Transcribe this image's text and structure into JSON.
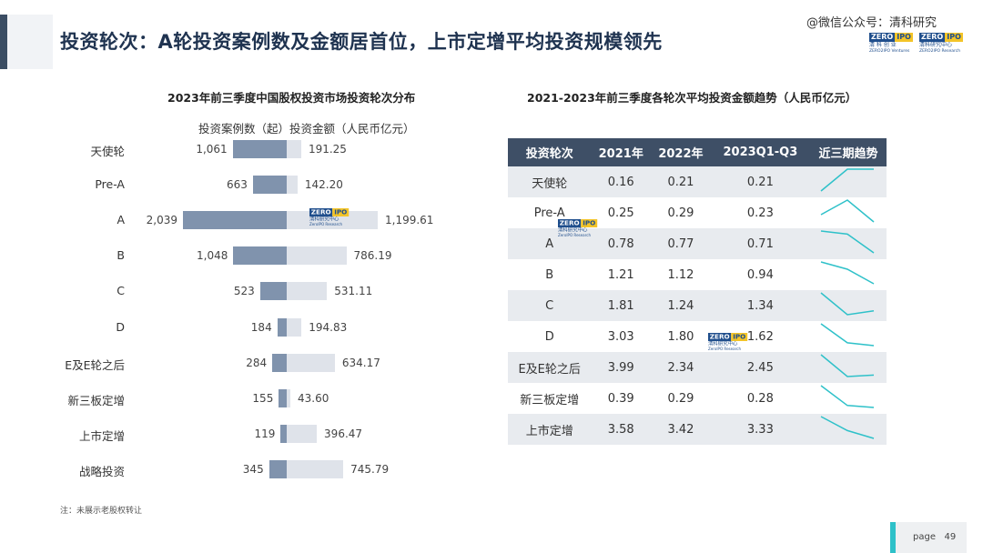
{
  "header": {
    "title": "投资轮次：A轮投资案例数及金额居首位，上市定增平均投资规模领先",
    "watermark": "微信公众号：清科研究",
    "logo_left": {
      "zero": "ZERO",
      "ipo": "IPO",
      "cn": "清 科 创 业",
      "en": "ZERO2IPO Ventures"
    },
    "logo_right": {
      "zero": "ZERO",
      "ipo": "IPO",
      "cn": "清科研究中心",
      "en": "ZERO2IPO Research"
    }
  },
  "left_chart": {
    "title": "2023年前三季度中国股权投资市场投资轮次分布",
    "legend_count": "投资案例数（起）",
    "legend_amount": "投资金额（人民币亿元）",
    "watermark_logo": {
      "zero": "ZERO",
      "ipo": "IPO",
      "cn": "清科研究中心",
      "en": "ZeroIPO Research"
    }
  },
  "right_chart": {
    "title": "2021-2023年前三季度各轮次平均投资金额趋势（人民币亿元）",
    "watermark_logo_1": {
      "zero": "ZERO",
      "ipo": "IPO",
      "cn": "清科研究中心",
      "en": "ZeroIPO Research"
    },
    "watermark_logo_2": {
      "zero": "ZERO",
      "ipo": "IPO",
      "cn": "清科研究中心",
      "en": "ZeroIPO Research"
    }
  },
  "chart_data": [
    {
      "type": "bar",
      "title": "2023年前三季度中国股权投资市场投资轮次分布",
      "categories": [
        "天使轮",
        "Pre-A",
        "A",
        "B",
        "C",
        "D",
        "E及E轮之后",
        "新三板定增",
        "上市定增",
        "战略投资"
      ],
      "series": [
        {
          "name": "投资案例数（起）",
          "values": [
            1061,
            663,
            2039,
            1048,
            523,
            184,
            284,
            155,
            119,
            345
          ],
          "labels": [
            "1,061",
            "663",
            "2,039",
            "1,048",
            "523",
            "184",
            "284",
            "155",
            "119",
            "345"
          ]
        },
        {
          "name": "投资金额（人民币亿元）",
          "values": [
            191.25,
            142.2,
            1199.61,
            786.19,
            531.11,
            194.83,
            634.17,
            43.6,
            396.47,
            745.79
          ],
          "labels": [
            "191.25",
            "142.20",
            "1,199.61",
            "786.19",
            "531.11",
            "194.83",
            "634.17",
            "43.60",
            "396.47",
            "745.79"
          ]
        }
      ],
      "colors": {
        "count": "#8093ad",
        "amount": "#dfe3ea"
      }
    },
    {
      "type": "table",
      "title": "2021-2023年前三季度各轮次平均投资金额趋势（人民币亿元）",
      "columns": [
        "投资轮次",
        "2021年",
        "2022年",
        "2023Q1-Q3",
        "近三期趋势"
      ],
      "rows": [
        {
          "round": "天使轮",
          "v2021": "0.16",
          "v2022": "0.21",
          "v2023": "0.21"
        },
        {
          "round": "Pre-A",
          "v2021": "0.25",
          "v2022": "0.29",
          "v2023": "0.23"
        },
        {
          "round": "A",
          "v2021": "0.78",
          "v2022": "0.77",
          "v2023": "0.71"
        },
        {
          "round": "B",
          "v2021": "1.21",
          "v2022": "1.12",
          "v2023": "0.94"
        },
        {
          "round": "C",
          "v2021": "1.81",
          "v2022": "1.24",
          "v2023": "1.34"
        },
        {
          "round": "D",
          "v2021": "3.03",
          "v2022": "1.80",
          "v2023": "1.62"
        },
        {
          "round": "E及E轮之后",
          "v2021": "3.99",
          "v2022": "2.34",
          "v2023": "2.45"
        },
        {
          "round": "新三板定增",
          "v2021": "0.39",
          "v2022": "0.29",
          "v2023": "0.28"
        },
        {
          "round": "上市定增",
          "v2021": "3.58",
          "v2022": "3.42",
          "v2023": "3.33"
        }
      ],
      "sparkline_color": "#2ec1c9",
      "header_color": "#3e4f66"
    }
  ],
  "footer": {
    "note": "注：未展示老股权转让",
    "page_label": "page",
    "page_number": "49"
  }
}
